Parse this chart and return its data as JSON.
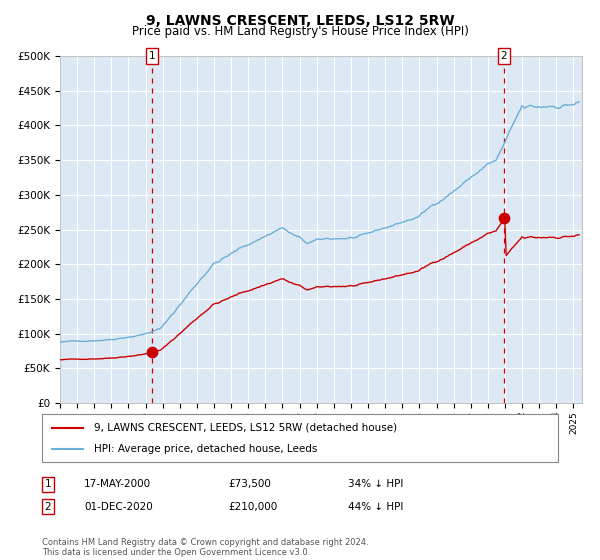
{
  "title": "9, LAWNS CRESCENT, LEEDS, LS12 5RW",
  "subtitle": "Price paid vs. HM Land Registry's House Price Index (HPI)",
  "title_fontsize": 10,
  "subtitle_fontsize": 8.5,
  "bg_color": "#dce9f5",
  "grid_color": "#ffffff",
  "hpi_color": "#6baed6",
  "price_color": "#cc0000",
  "marker1_date": 2000.38,
  "marker1_price": 73500,
  "marker2_date": 2020.92,
  "marker2_price": 210000,
  "vline_color": "#cc0000",
  "ylim": [
    0,
    500000
  ],
  "xlim": [
    1995.0,
    2025.5
  ],
  "yticks": [
    0,
    50000,
    100000,
    150000,
    200000,
    250000,
    300000,
    350000,
    400000,
    450000,
    500000
  ],
  "legend_label_red": "9, LAWNS CRESCENT, LEEDS, LS12 5RW (detached house)",
  "legend_label_blue": "HPI: Average price, detached house, Leeds",
  "footnote": "Contains HM Land Registry data © Crown copyright and database right 2024.\nThis data is licensed under the Open Government Licence v3.0.",
  "table_rows": [
    {
      "num": "1",
      "date": "17-MAY-2000",
      "price": "£73,500",
      "pct": "34% ↓ HPI"
    },
    {
      "num": "2",
      "date": "01-DEC-2020",
      "price": "£210,000",
      "pct": "44% ↓ HPI"
    }
  ]
}
